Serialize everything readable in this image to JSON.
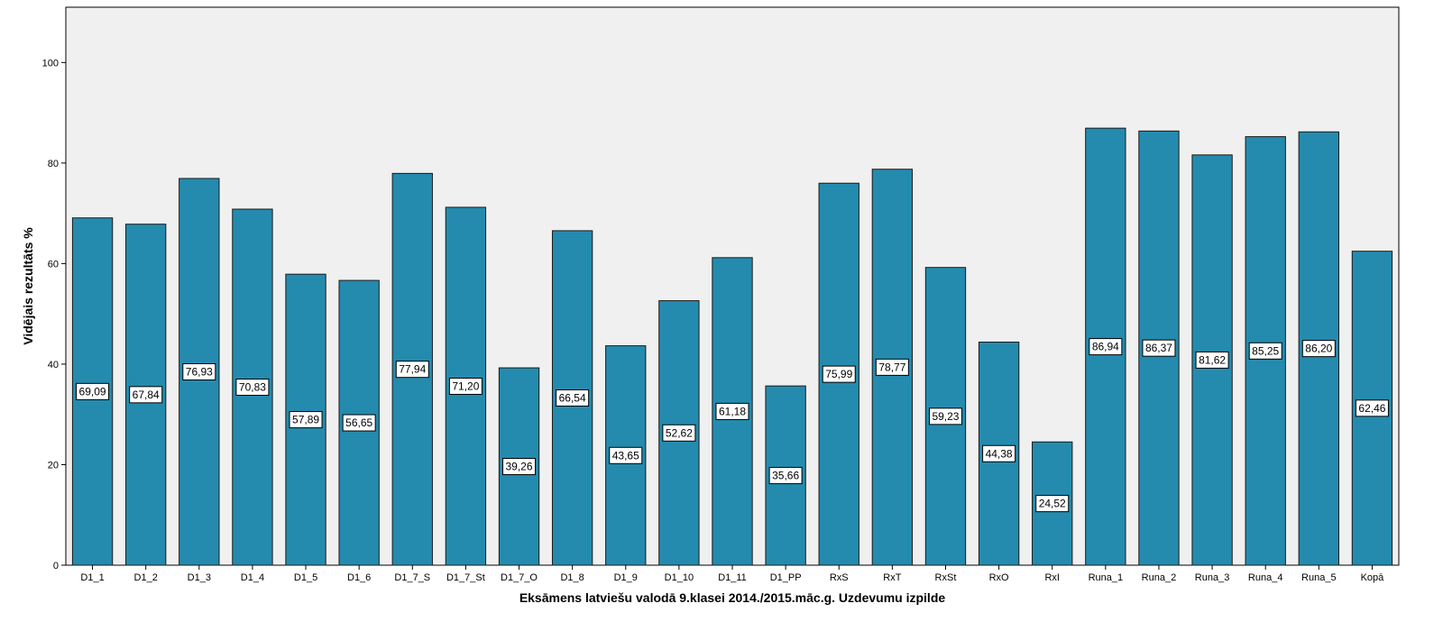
{
  "chart_data": {
    "type": "bar",
    "title": "",
    "xlabel": "Eksāmens latviešu valodā 9.klasei 2014./2015.māc.g. Uzdevumu izpilde",
    "ylabel": "Vidējais rezultāts %",
    "ylim": [
      0,
      111
    ],
    "yticks": [
      0,
      20,
      40,
      60,
      80,
      100
    ],
    "grid": false,
    "categories": [
      "D1_1",
      "D1_2",
      "D1_3",
      "D1_4",
      "D1_5",
      "D1_6",
      "D1_7_S",
      "D1_7_St",
      "D1_7_O",
      "D1_8",
      "D1_9",
      "D1_10",
      "D1_11",
      "D1_PP",
      "RxS",
      "RxT",
      "RxSt",
      "RxO",
      "RxI",
      "Runa_1",
      "Runa_2",
      "Runa_3",
      "Runa_4",
      "Runa_5",
      "Kopā"
    ],
    "values": [
      69.09,
      67.84,
      76.93,
      70.83,
      57.89,
      56.65,
      77.94,
      71.2,
      39.26,
      66.54,
      43.65,
      52.62,
      61.18,
      35.66,
      75.99,
      78.77,
      59.23,
      44.38,
      24.52,
      86.94,
      86.37,
      81.62,
      85.25,
      86.2,
      62.46
    ],
    "data_labels": [
      "69,09",
      "67,84",
      "76,93",
      "70,83",
      "57,89",
      "56,65",
      "77,94",
      "71,20",
      "39,26",
      "66,54",
      "43,65",
      "52,62",
      "61,18",
      "35,66",
      "75,99",
      "78,77",
      "59,23",
      "44,38",
      "24,52",
      "86,94",
      "86,37",
      "81,62",
      "85,25",
      "86,20",
      "62,46"
    ],
    "colors": {
      "bar": "#248BAE",
      "bar_border": "#1a1a1a",
      "plot_background": "#F0F0F0",
      "axis": "#000000",
      "label_box": "#FFFFFF"
    }
  }
}
